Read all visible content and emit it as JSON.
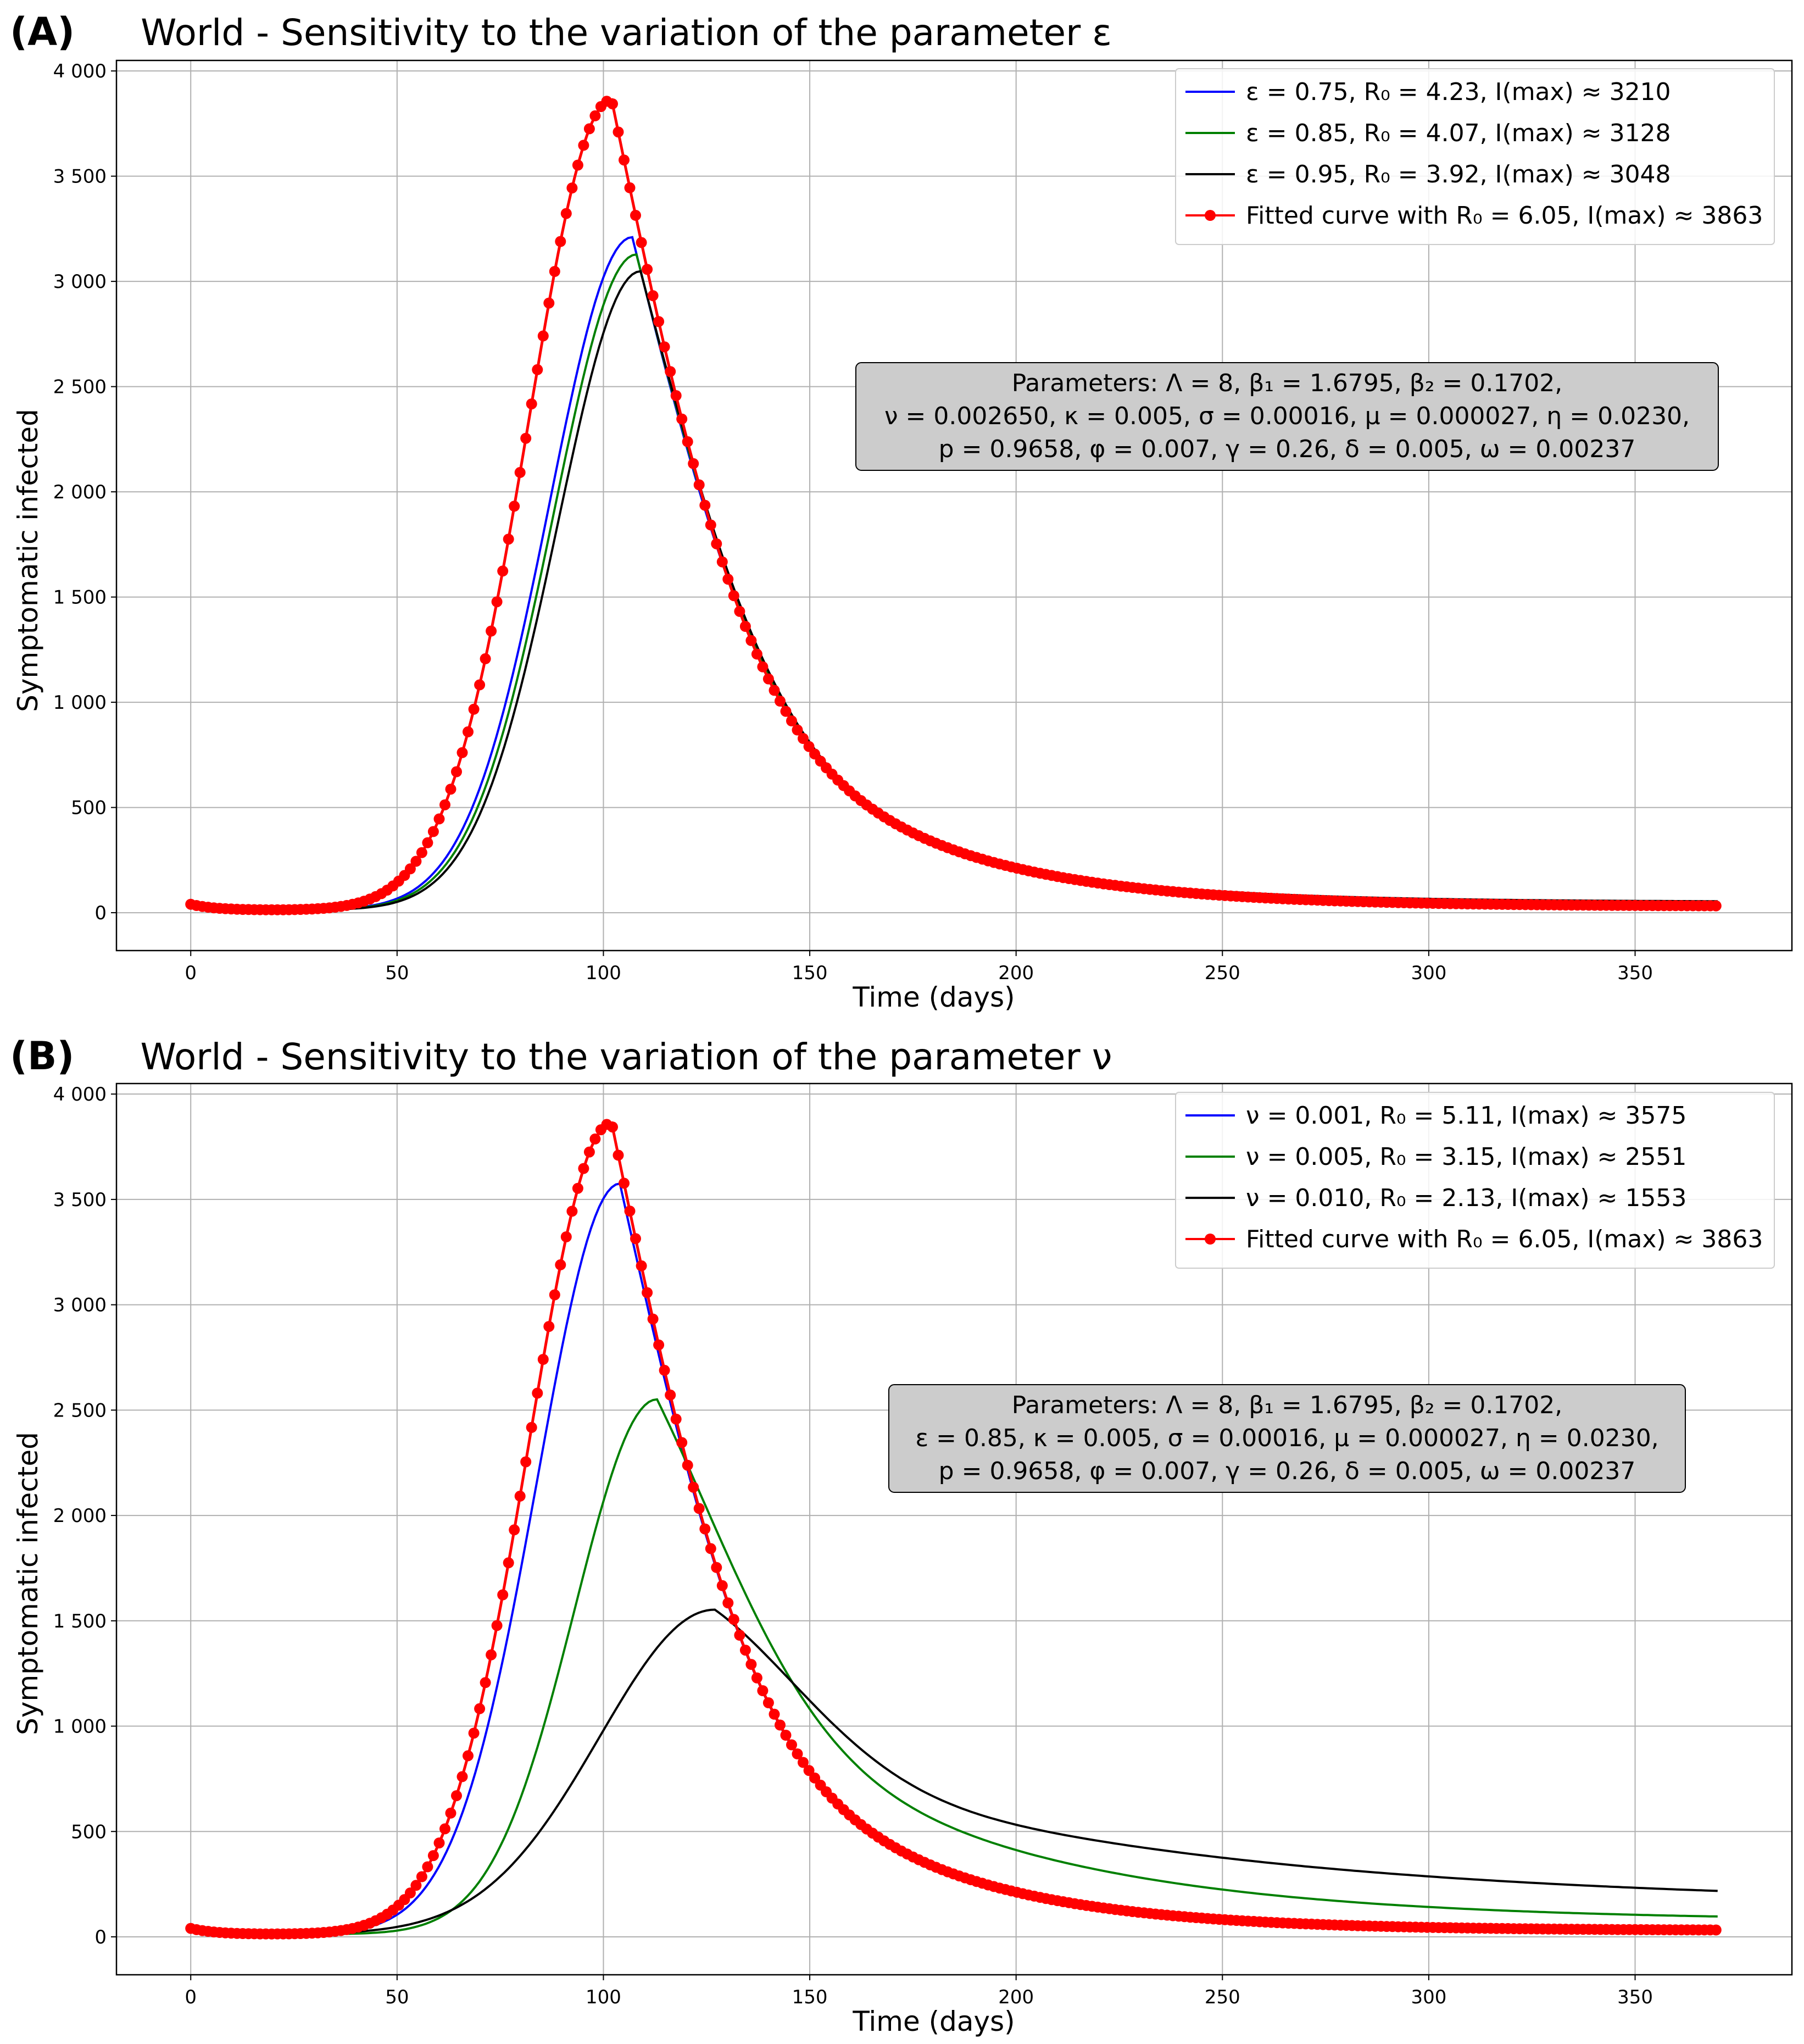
{
  "chart_data": [
    {
      "panel": "(A)",
      "type": "line",
      "title": "World - Sensitivity to the variation of the parameter ε",
      "xlabel": "Time (days)",
      "ylabel": "Symptomatic infected",
      "xlim": [
        -18,
        388
      ],
      "ylim": [
        -180,
        4050
      ],
      "xticks": [
        0,
        50,
        100,
        150,
        200,
        250,
        300,
        350
      ],
      "yticks": [
        0,
        500,
        1000,
        1500,
        2000,
        2500,
        3000,
        3500,
        4000
      ],
      "ytick_labels": [
        "0",
        "500",
        "1 000",
        "1 500",
        "2 000",
        "2 500",
        "3 000",
        "3 500",
        "4 000"
      ],
      "grid": true,
      "legend_position": "top-right",
      "parameter_box_lines": [
        "Parameters:  Λ =  8, β₁ =  1.6795, β₂ =  0.1702,",
        "ν =  0.002650, κ =  0.005, σ =  0.00016, μ =  0.000027, η =  0.0230,",
        "p =  0.9658, φ =  0.007, γ =  0.26, δ =  0.005, ω =  0.00237"
      ],
      "x_range": [
        0,
        370
      ],
      "series": [
        {
          "name": "ε = 0.75, R₀ = 4.23,  I(max) ≈ 3210",
          "color": "#0000ff",
          "marker": false,
          "peak_time": 107,
          "peak_value": 3210,
          "end_value": 40,
          "start_value": 28
        },
        {
          "name": "ε = 0.85, R₀ = 4.07,  I(max) ≈ 3128",
          "color": "#008000",
          "marker": false,
          "peak_time": 108,
          "peak_value": 3128,
          "end_value": 45,
          "start_value": 28
        },
        {
          "name": "ε = 0.95, R₀ = 3.92,  I(max) ≈ 3048",
          "color": "#000000",
          "marker": false,
          "peak_time": 109,
          "peak_value": 3048,
          "end_value": 52,
          "start_value": 28
        },
        {
          "name": "Fitted curve with R₀ = 6.05, I(max) ≈ 3863",
          "color": "#ff0000",
          "marker": true,
          "peak_time": 102,
          "peak_value": 3863,
          "end_value": 30,
          "start_value": 28
        }
      ]
    },
    {
      "panel": "(B)",
      "type": "line",
      "title": "World - Sensitivity to the variation of the parameter ν",
      "xlabel": "Time (days)",
      "ylabel": "Symptomatic infected",
      "xlim": [
        -18,
        388
      ],
      "ylim": [
        -180,
        4050
      ],
      "xticks": [
        0,
        50,
        100,
        150,
        200,
        250,
        300,
        350
      ],
      "yticks": [
        0,
        500,
        1000,
        1500,
        2000,
        2500,
        3000,
        3500,
        4000
      ],
      "ytick_labels": [
        "0",
        "500",
        "1 000",
        "1 500",
        "2 000",
        "2 500",
        "3 000",
        "3 500",
        "4 000"
      ],
      "grid": true,
      "legend_position": "top-right",
      "parameter_box_lines": [
        "Parameters:  Λ =  8, β₁ =  1.6795, β₂ =  0.1702,",
        "ε =  0.85, κ =  0.005, σ =  0.00016, μ =  0.000027, η =  0.0230,",
        "p =  0.9658, φ =  0.007, γ =  0.26, δ =  0.005, ω =  0.00237"
      ],
      "x_range": [
        0,
        370
      ],
      "series": [
        {
          "name": "ν = 0.001, R₀ = 5.11,  I(max) ≈ 3575",
          "color": "#0000ff",
          "marker": false,
          "peak_time": 104,
          "peak_value": 3575,
          "end_value": 30,
          "start_value": 28
        },
        {
          "name": "ν = 0.005, R₀ = 3.15,  I(max) ≈ 2551",
          "color": "#008000",
          "marker": false,
          "peak_time": 113,
          "peak_value": 2551,
          "end_value": 75,
          "start_value": 28
        },
        {
          "name": "ν = 0.010, R₀ = 2.13,  I(max) ≈ 1553",
          "color": "#000000",
          "marker": false,
          "peak_time": 127,
          "peak_value": 1553,
          "end_value": 150,
          "start_value": 28
        },
        {
          "name": "Fitted curve with R₀ = 6.05, I(max) ≈ 3863",
          "color": "#ff0000",
          "marker": true,
          "peak_time": 102,
          "peak_value": 3863,
          "end_value": 30,
          "start_value": 28
        }
      ]
    }
  ]
}
